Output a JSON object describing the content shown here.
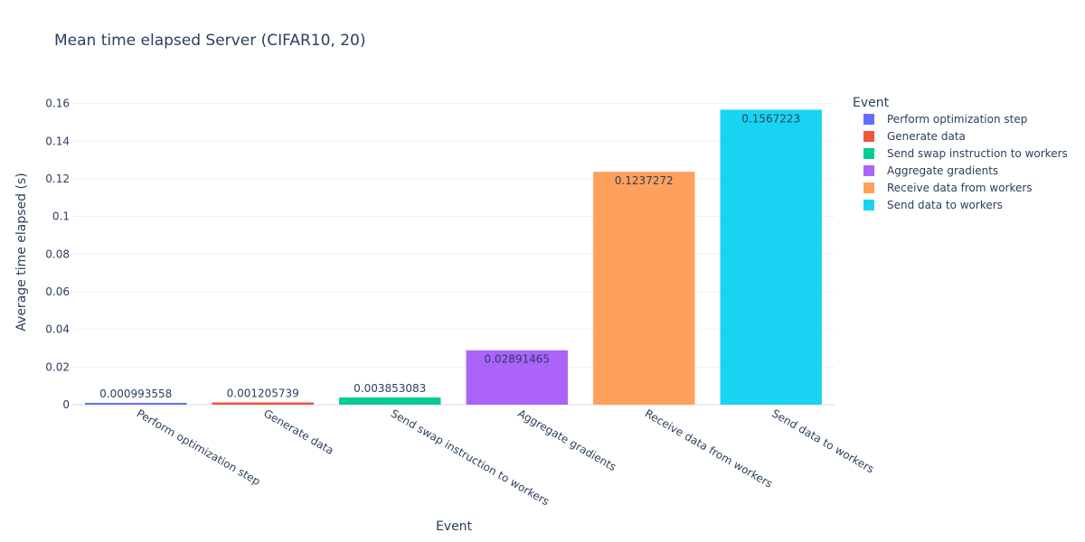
{
  "chart_data": {
    "type": "bar",
    "title": "Mean time elapsed Server (CIFAR10, 20)",
    "xlabel": "Event",
    "ylabel": "Average time elapsed (s)",
    "ylim": [
      0,
      0.167
    ],
    "yticks": [
      0,
      0.02,
      0.04,
      0.06,
      0.08,
      0.1,
      0.12,
      0.14,
      0.16
    ],
    "ytick_labels": [
      "0",
      "0.02",
      "0.04",
      "0.06",
      "0.08",
      "0.1",
      "0.12",
      "0.14",
      "0.16"
    ],
    "grid": true,
    "legend_title": "Event",
    "legend_position": "right",
    "categories": [
      "Perform optimization step",
      "Generate data",
      "Send swap instruction to workers",
      "Aggregate gradients",
      "Receive data from workers",
      "Send data to workers"
    ],
    "values": [
      0.000993558,
      0.001205739,
      0.003853083,
      0.02891465,
      0.1237272,
      0.1567223
    ],
    "value_labels": [
      "0.000993558",
      "0.001205739",
      "0.003853083",
      "0.02891465",
      "0.1237272",
      "0.1567223"
    ],
    "colors": [
      "#636efa",
      "#EF553B",
      "#00cc96",
      "#ab63fa",
      "#FFA15A",
      "#19d3f3"
    ]
  }
}
